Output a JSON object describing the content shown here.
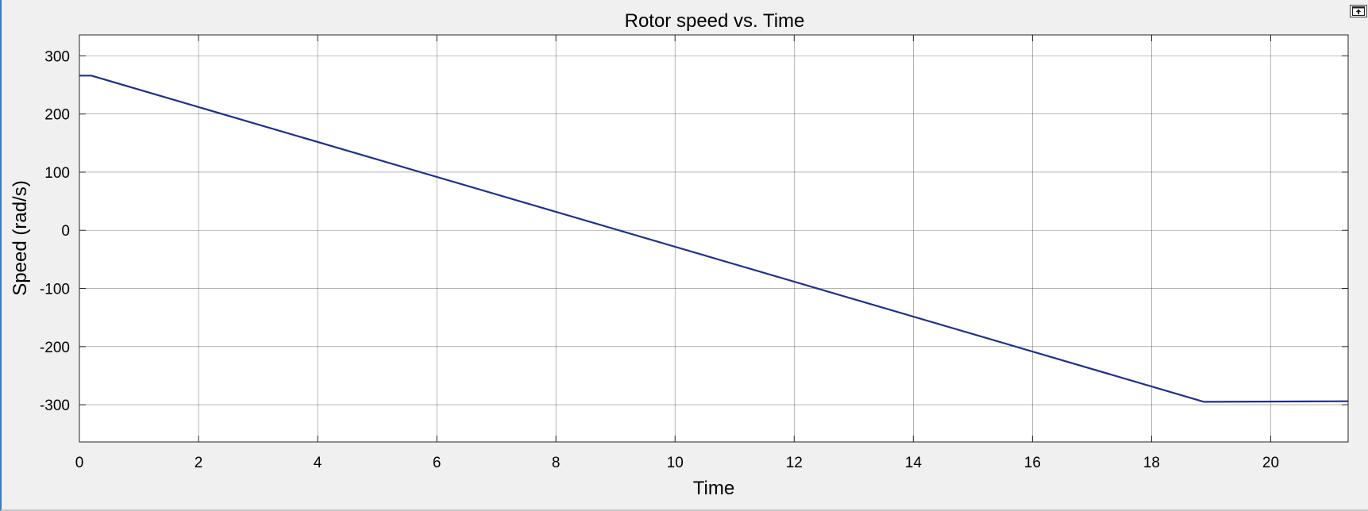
{
  "chart_data": {
    "type": "line",
    "title": "Rotor speed vs. Time",
    "xlabel": "Time",
    "ylabel": "Speed (rad/s)",
    "xlim": [
      0,
      21.3
    ],
    "ylim": [
      -364,
      336
    ],
    "xticks": [
      0,
      2,
      4,
      6,
      8,
      10,
      12,
      14,
      16,
      18,
      20
    ],
    "yticks": [
      300,
      200,
      100,
      0,
      -100,
      -200,
      -300
    ],
    "grid": true,
    "series": [
      {
        "color": "#1f2f8f",
        "x": [
          0,
          0.2,
          18.88,
          21.3
        ],
        "y": [
          266,
          266,
          -295,
          -294
        ]
      }
    ]
  },
  "toolbar": {
    "undock_icon": "undock-icon"
  }
}
